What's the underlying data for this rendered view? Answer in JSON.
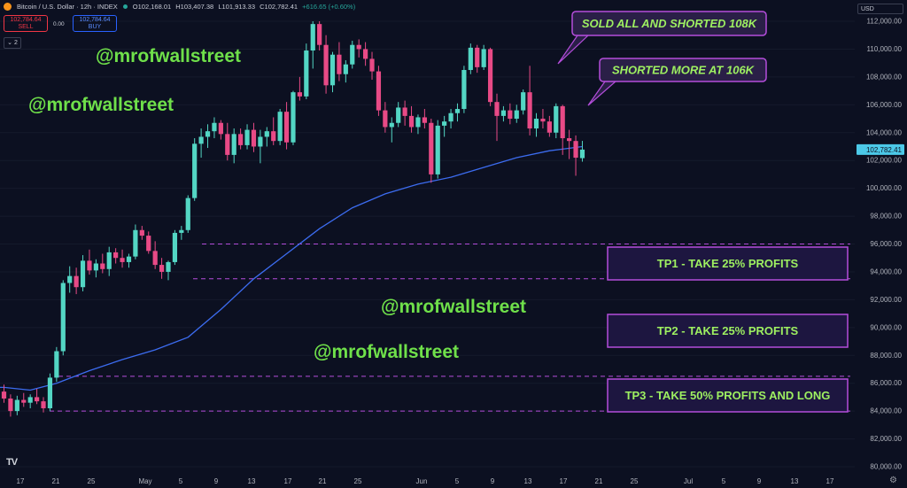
{
  "header": {
    "title": "Bitcoin / U.S. Dollar · 12h · INDEX",
    "open": "O102,168.01",
    "high": "H103,407.38",
    "low": "L101,913.33",
    "close": "C102,782.41",
    "change": "+616.65 (+0.60%)",
    "sell_price": "102,784.64",
    "sell_label": "SELL",
    "spread": "0.00",
    "buy_price": "102,784.64",
    "buy_label": "BUY",
    "indicator_toggle": "2",
    "currency": "USD"
  },
  "chart_data": {
    "type": "candlestick",
    "timeframe": "12h",
    "ylim": [
      79500,
      113000
    ],
    "y_ticks": [
      80000,
      82000,
      84000,
      86000,
      88000,
      90000,
      92000,
      94000,
      96000,
      98000,
      100000,
      102000,
      104000,
      106000,
      108000,
      110000,
      112000
    ],
    "x_ticks": [
      "17",
      "21",
      "25",
      "May",
      "5",
      "9",
      "13",
      "17",
      "21",
      "25",
      "Jun",
      "5",
      "9",
      "13",
      "17",
      "21",
      "25",
      "Jul",
      "5",
      "9",
      "13",
      "17"
    ],
    "last_price": "102,782.41",
    "candles": [
      [
        85400,
        85900,
        84600,
        84900
      ],
      [
        84900,
        85200,
        83600,
        84000
      ],
      [
        84000,
        85100,
        83700,
        84800
      ],
      [
        84800,
        85300,
        84300,
        84600
      ],
      [
        84600,
        85200,
        84200,
        85000
      ],
      [
        85000,
        85600,
        84500,
        84700
      ],
      [
        84700,
        85000,
        83900,
        84200
      ],
      [
        84200,
        86700,
        84000,
        86400
      ],
      [
        86400,
        88600,
        86100,
        88300
      ],
      [
        88300,
        93400,
        88000,
        93200
      ],
      [
        93200,
        94400,
        92500,
        93700
      ],
      [
        93700,
        94300,
        92400,
        92900
      ],
      [
        92900,
        95200,
        92600,
        94800
      ],
      [
        94800,
        95600,
        93800,
        94100
      ],
      [
        94100,
        94900,
        93600,
        94600
      ],
      [
        94600,
        95300,
        93900,
        94200
      ],
      [
        94200,
        95800,
        93700,
        95400
      ],
      [
        95400,
        95700,
        94600,
        95000
      ],
      [
        95000,
        95600,
        94300,
        94700
      ],
      [
        94700,
        95300,
        94300,
        95100
      ],
      [
        95100,
        97400,
        94900,
        97000
      ],
      [
        97000,
        97300,
        96300,
        96600
      ],
      [
        96600,
        96900,
        95300,
        95500
      ],
      [
        95500,
        96200,
        94200,
        94500
      ],
      [
        94500,
        95000,
        93500,
        94000
      ],
      [
        94000,
        94800,
        93400,
        94700
      ],
      [
        94700,
        97000,
        94500,
        96800
      ],
      [
        96800,
        97300,
        96300,
        97000
      ],
      [
        97000,
        99500,
        96800,
        99300
      ],
      [
        99300,
        103600,
        99100,
        103200
      ],
      [
        103200,
        104300,
        102200,
        103700
      ],
      [
        103700,
        104600,
        102900,
        104100
      ],
      [
        104100,
        105100,
        103600,
        104700
      ],
      [
        104700,
        104900,
        103500,
        103900
      ],
      [
        103900,
        104700,
        102000,
        102400
      ],
      [
        102400,
        104300,
        101800,
        103900
      ],
      [
        103900,
        104300,
        102800,
        103100
      ],
      [
        103100,
        104600,
        102800,
        104200
      ],
      [
        104200,
        104700,
        102600,
        103000
      ],
      [
        103000,
        104200,
        101800,
        103700
      ],
      [
        103700,
        104400,
        103000,
        104100
      ],
      [
        104100,
        105100,
        103100,
        103400
      ],
      [
        103400,
        105700,
        103100,
        105500
      ],
      [
        105500,
        106200,
        102800,
        103300
      ],
      [
        103300,
        107000,
        103100,
        106900
      ],
      [
        106900,
        108000,
        106300,
        106600
      ],
      [
        106600,
        110400,
        106400,
        109900
      ],
      [
        109900,
        112000,
        108600,
        111800
      ],
      [
        111800,
        112000,
        109900,
        110300
      ],
      [
        110300,
        111000,
        106800,
        107400
      ],
      [
        107400,
        109800,
        106900,
        109600
      ],
      [
        109600,
        110500,
        107700,
        108200
      ],
      [
        108200,
        109200,
        107600,
        108900
      ],
      [
        108900,
        110600,
        108600,
        110300
      ],
      [
        110300,
        110700,
        109400,
        110000
      ],
      [
        110000,
        110500,
        108800,
        109300
      ],
      [
        109300,
        109800,
        107800,
        108400
      ],
      [
        108400,
        108800,
        105200,
        105600
      ],
      [
        105600,
        106200,
        104000,
        104400
      ],
      [
        104400,
        105100,
        103300,
        104700
      ],
      [
        104700,
        106200,
        104400,
        105800
      ],
      [
        105800,
        106300,
        104500,
        105200
      ],
      [
        105200,
        105900,
        104000,
        104400
      ],
      [
        104400,
        105300,
        103900,
        105100
      ],
      [
        105100,
        105700,
        104300,
        104700
      ],
      [
        104700,
        105000,
        100400,
        101000
      ],
      [
        101000,
        104900,
        100700,
        104500
      ],
      [
        104500,
        105200,
        103700,
        104800
      ],
      [
        104800,
        105700,
        104300,
        105400
      ],
      [
        105400,
        106100,
        104800,
        105700
      ],
      [
        105700,
        108800,
        105400,
        108500
      ],
      [
        108500,
        110400,
        108200,
        110100
      ],
      [
        110100,
        110300,
        108300,
        108700
      ],
      [
        108700,
        110300,
        108500,
        110000
      ],
      [
        110000,
        110100,
        105900,
        106200
      ],
      [
        106200,
        106800,
        103400,
        105200
      ],
      [
        105200,
        105900,
        104800,
        105600
      ],
      [
        105600,
        106100,
        104600,
        105000
      ],
      [
        105000,
        106000,
        104700,
        105600
      ],
      [
        105600,
        107100,
        105300,
        106900
      ],
      [
        106900,
        108800,
        103800,
        104300
      ],
      [
        104300,
        105400,
        103700,
        105000
      ],
      [
        105000,
        105700,
        104300,
        104800
      ],
      [
        104800,
        105200,
        103700,
        104000
      ],
      [
        104000,
        106100,
        103600,
        105900
      ],
      [
        105900,
        106000,
        102400,
        103600
      ],
      [
        103600,
        104200,
        102100,
        103400
      ],
      [
        103400,
        103800,
        100900,
        102200
      ],
      [
        102168.01,
        103407.38,
        101913.33,
        102782.41
      ]
    ],
    "moving_average": {
      "x": [
        0,
        4,
        8,
        13,
        18,
        23,
        28,
        33,
        38,
        43,
        48,
        53,
        58,
        63,
        68,
        73,
        78,
        83,
        88
      ],
      "y": [
        85700,
        85500,
        86000,
        86900,
        87700,
        88400,
        89300,
        91300,
        93500,
        95300,
        97100,
        98600,
        99600,
        100300,
        100800,
        101500,
        102200,
        102700,
        103000
      ]
    },
    "horizontal_levels": [
      96000,
      93500,
      86500,
      84000
    ],
    "annotations": [
      {
        "text": "SOLD ALL AND SHORTED 108K",
        "x": 80,
        "y": 108800
      },
      {
        "text": "SHORTED MORE AT 106K",
        "x": 84,
        "y": 106100
      }
    ],
    "targets": [
      {
        "label": "TP1 - TAKE 25% PROFITS",
        "level": 94800
      },
      {
        "label": "TP2 - TAKE 25% PROFITS",
        "level": 89800
      },
      {
        "label": "TP3 - TAKE 50% PROFITS AND LONG",
        "level": 85200
      }
    ],
    "watermarks": [
      "@mrofwallstreet",
      "@mrofwallstreet",
      "@mrofwallstreet",
      "@mrofwallstreet"
    ],
    "colors": {
      "up": "#53d6c4",
      "down": "#e84a86",
      "ma": "#3c6cf0",
      "level": "#b44ddb",
      "callout_text": "#9ef061",
      "watermark": "#6fe04a",
      "last_price": "#4cc9e8"
    }
  },
  "footer": {
    "logo": "TV"
  }
}
